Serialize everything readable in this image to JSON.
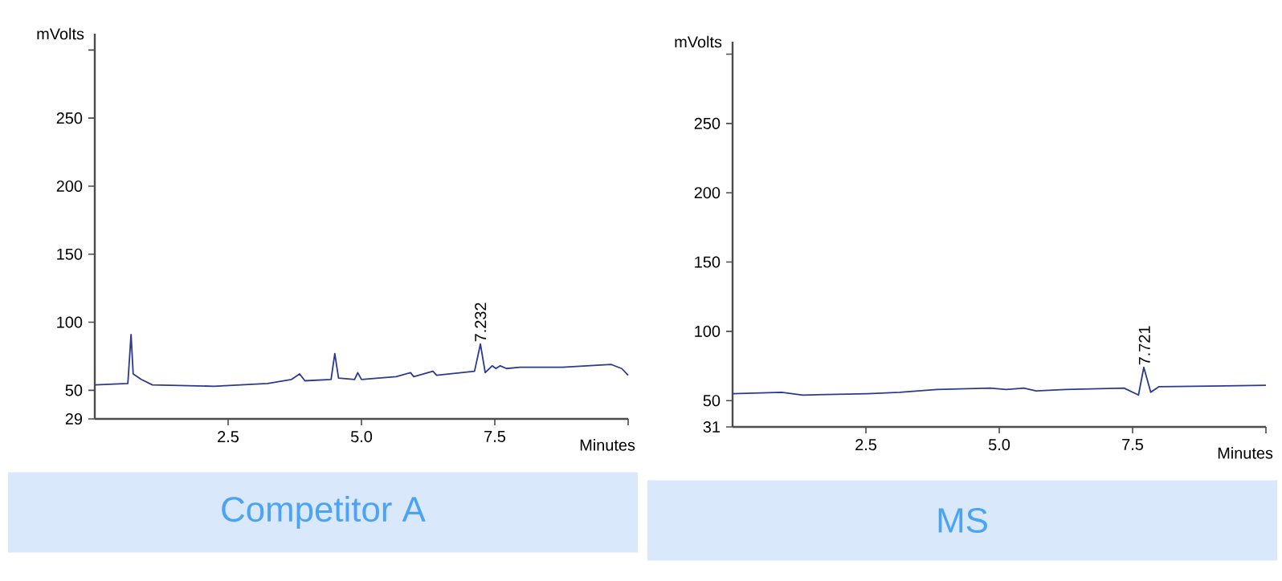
{
  "chart_data": [
    {
      "type": "line",
      "title": "Competitor A",
      "xlabel": "Minutes",
      "ylabel": "mVolts",
      "xlim": [
        0,
        10
      ],
      "ylim": [
        29,
        312
      ],
      "xticks": [
        {
          "value": 2.5,
          "label": "2.5"
        },
        {
          "value": 5,
          "label": "5.0"
        },
        {
          "value": 7.5,
          "label": "7.5"
        },
        {
          "value": 10,
          "label": null
        }
      ],
      "yticks": [
        29,
        50,
        100,
        150,
        200,
        250,
        {
          "value": 300,
          "label": null
        }
      ],
      "series": [
        {
          "color": "#2b3a8f",
          "x": [
            0,
            0.62,
            0.68,
            0.72,
            0.87,
            1.08,
            2.23,
            3.24,
            3.69,
            3.84,
            3.94,
            4.43,
            4.5,
            4.57,
            4.87,
            4.93,
            5.0,
            5.65,
            5.92,
            5.98,
            6.34,
            6.41,
            7.12,
            7.23,
            7.32,
            7.45,
            7.52,
            7.6,
            7.72,
            7.97,
            8.77,
            9.68,
            9.88,
            10
          ],
          "values": [
            54,
            55,
            91,
            62,
            58,
            54,
            53,
            55,
            58,
            62,
            57,
            58,
            77,
            59,
            58,
            63,
            58,
            60,
            63,
            60,
            64,
            61,
            64,
            84,
            63,
            68,
            66,
            68,
            66,
            67,
            67,
            69,
            66,
            61
          ]
        }
      ],
      "annotations": [
        {
          "text": "7.232",
          "x": 7.232,
          "y": 84
        }
      ]
    },
    {
      "type": "line",
      "title": "MS",
      "xlabel": "Minutes",
      "ylabel": "mVolts",
      "xlim": [
        0,
        10
      ],
      "ylim": [
        31,
        309
      ],
      "xticks": [
        {
          "value": 2.5,
          "label": "2.5"
        },
        {
          "value": 5,
          "label": "5.0"
        },
        {
          "value": 7.5,
          "label": "7.5"
        },
        {
          "value": 10,
          "label": null
        }
      ],
      "yticks": [
        31,
        50,
        100,
        150,
        200,
        250,
        {
          "value": 300,
          "label": null
        }
      ],
      "series": [
        {
          "color": "#2b3a8f",
          "x": [
            0,
            0.92,
            1.32,
            2.53,
            3.13,
            3.83,
            4.83,
            5.13,
            5.46,
            5.69,
            6.24,
            7.34,
            7.61,
            7.71,
            7.84,
            7.99,
            10
          ],
          "values": [
            55,
            56,
            54,
            55,
            56,
            58,
            59,
            58,
            59,
            57,
            58,
            59,
            54,
            74,
            56,
            60,
            61
          ]
        }
      ],
      "annotations": [
        {
          "text": "7.721",
          "x": 7.721,
          "y": 74
        }
      ]
    }
  ]
}
